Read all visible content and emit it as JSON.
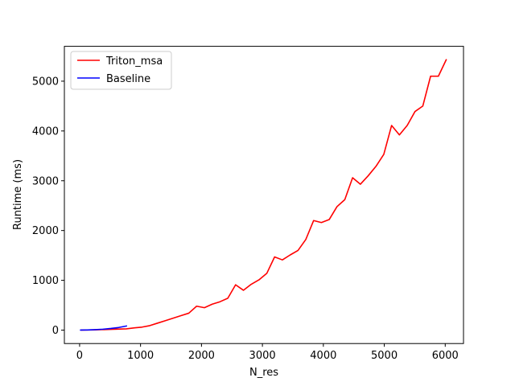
{
  "chart_data": {
    "type": "line",
    "title": "",
    "xlabel": "N_res",
    "ylabel": "Runtime (ms)",
    "xlim": [
      -250,
      6300
    ],
    "ylim": [
      -270,
      5700
    ],
    "xticks": [
      0,
      1000,
      2000,
      3000,
      4000,
      5000,
      6000
    ],
    "yticks": [
      0,
      1000,
      2000,
      3000,
      4000,
      5000
    ],
    "grid": false,
    "legend": "upper-left",
    "series": [
      {
        "name": "Triton_msa",
        "color": "#ff0000",
        "x": [
          32,
          256,
          512,
          768,
          900,
          1024,
          1152,
          1280,
          1408,
          1536,
          1664,
          1792,
          1920,
          2048,
          2176,
          2304,
          2432,
          2560,
          2688,
          2816,
          2944,
          3072,
          3200,
          3328,
          3456,
          3584,
          3712,
          3840,
          3968,
          4096,
          4224,
          4352,
          4480,
          4608,
          4736,
          4864,
          4992,
          5120,
          5248,
          5376,
          5504,
          5632,
          5760,
          5888,
          6016
        ],
        "y": [
          0,
          5,
          15,
          25,
          45,
          60,
          90,
          140,
          190,
          240,
          290,
          340,
          480,
          450,
          520,
          570,
          640,
          910,
          800,
          920,
          1010,
          1140,
          1470,
          1410,
          1510,
          1600,
          1820,
          2200,
          2160,
          2220,
          2480,
          2620,
          3060,
          2930,
          3100,
          3290,
          3530,
          4110,
          3920,
          4110,
          4390,
          4500,
          5100,
          5100,
          5430
        ]
      },
      {
        "name": "Baseline",
        "color": "#0000ff",
        "x": [
          16,
          128,
          256,
          384,
          512,
          640,
          768
        ],
        "y": [
          0,
          3,
          9,
          18,
          33,
          52,
          82
        ]
      }
    ]
  }
}
